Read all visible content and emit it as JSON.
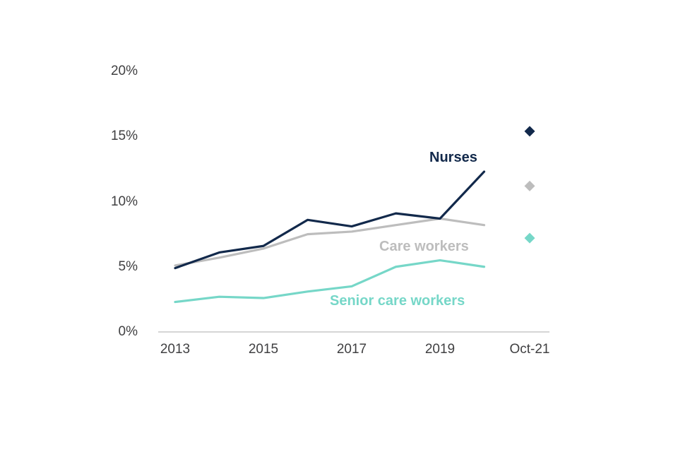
{
  "chart_data": {
    "type": "line",
    "title": "",
    "xlabel": "",
    "ylabel": "",
    "x": [
      2013,
      2014,
      2015,
      2016,
      2017,
      2018,
      2019,
      2020
    ],
    "series": [
      {
        "name": "Nurses",
        "color": "#12294b",
        "values": [
          4.9,
          6.1,
          6.6,
          8.6,
          8.1,
          9.1,
          8.7,
          12.3
        ],
        "oct21_value": 15.4
      },
      {
        "name": "Care workers",
        "color": "#bdbdbd",
        "values": [
          5.1,
          5.7,
          6.4,
          7.5,
          7.7,
          8.2,
          8.7,
          8.2
        ],
        "oct21_value": 11.2
      },
      {
        "name": "Senior care workers",
        "color": "#76d7c8",
        "values": [
          2.3,
          2.7,
          2.6,
          3.1,
          3.5,
          5.0,
          5.5,
          5.0
        ],
        "oct21_value": 7.2
      }
    ],
    "ylim": [
      0,
      20
    ],
    "yticks": [
      "0%",
      "5%",
      "10%",
      "15%",
      "20%"
    ],
    "xticks": [
      "2013",
      "2015",
      "2017",
      "2019",
      "Oct-21"
    ],
    "grid": false,
    "legend": "inline-labels",
    "axis_line_color": "#d6d6d6",
    "oct21_marker": "diamond"
  }
}
